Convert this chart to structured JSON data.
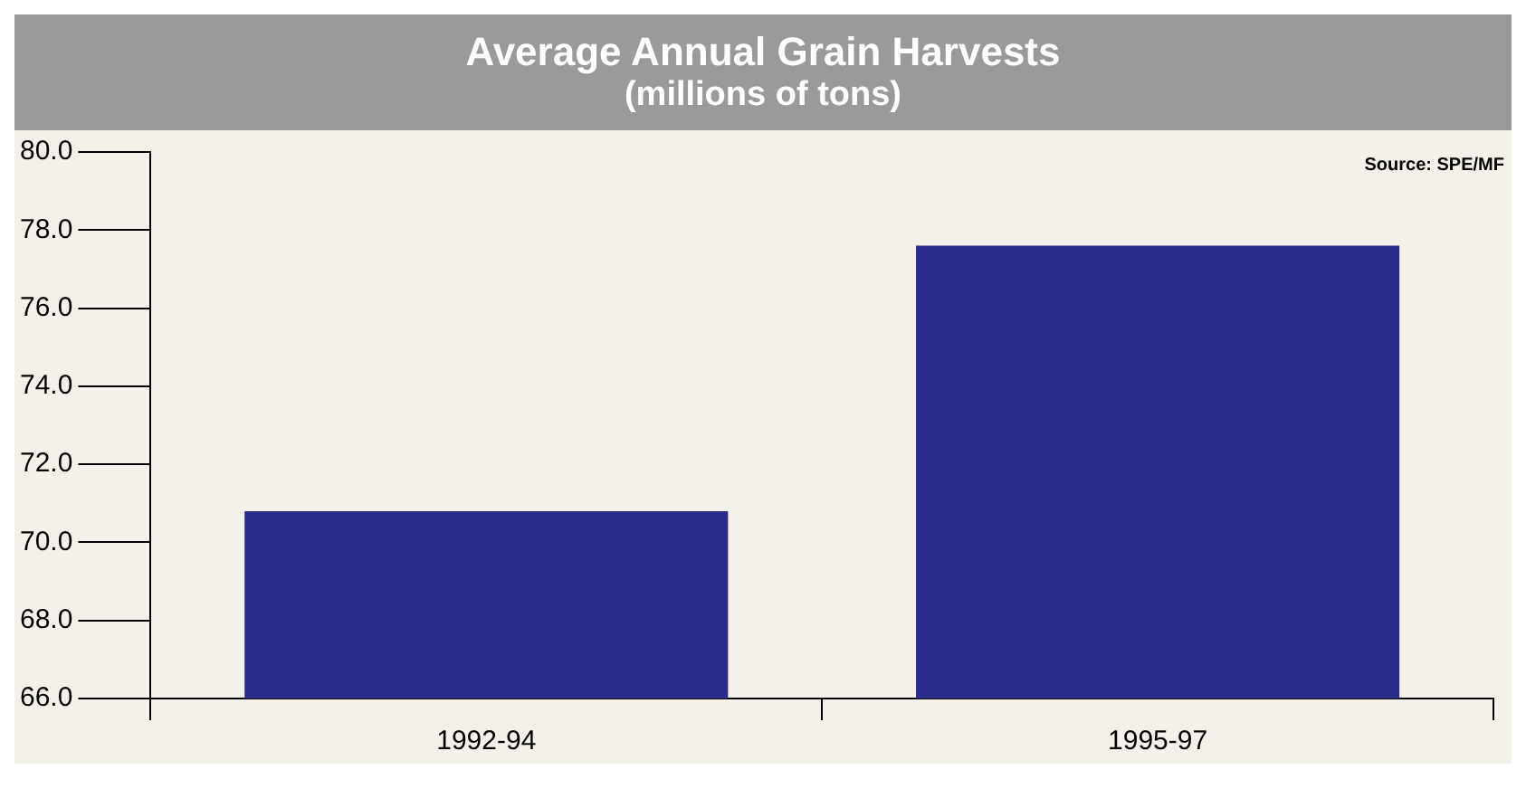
{
  "chart_data": {
    "type": "bar",
    "title": "Average Annual Grain Harvests",
    "subtitle": "(millions of tons)",
    "categories": [
      "1992-94",
      "1995-97"
    ],
    "values": [
      70.8,
      77.6
    ],
    "color": "#2b2b8c",
    "ylim": [
      66,
      80
    ],
    "yticks": [
      {
        "value": 66,
        "label": "66.0"
      },
      {
        "value": 68,
        "label": "68.0"
      },
      {
        "value": 70,
        "label": "70.0"
      },
      {
        "value": 72,
        "label": "72.0"
      },
      {
        "value": 74,
        "label": "74.0"
      },
      {
        "value": 76,
        "label": "76.0"
      },
      {
        "value": 78,
        "label": "78.0"
      },
      {
        "value": 80,
        "label": "80.0"
      }
    ],
    "grid": false,
    "legend": false,
    "annotations": [
      "Source: SPE/MF"
    ]
  }
}
